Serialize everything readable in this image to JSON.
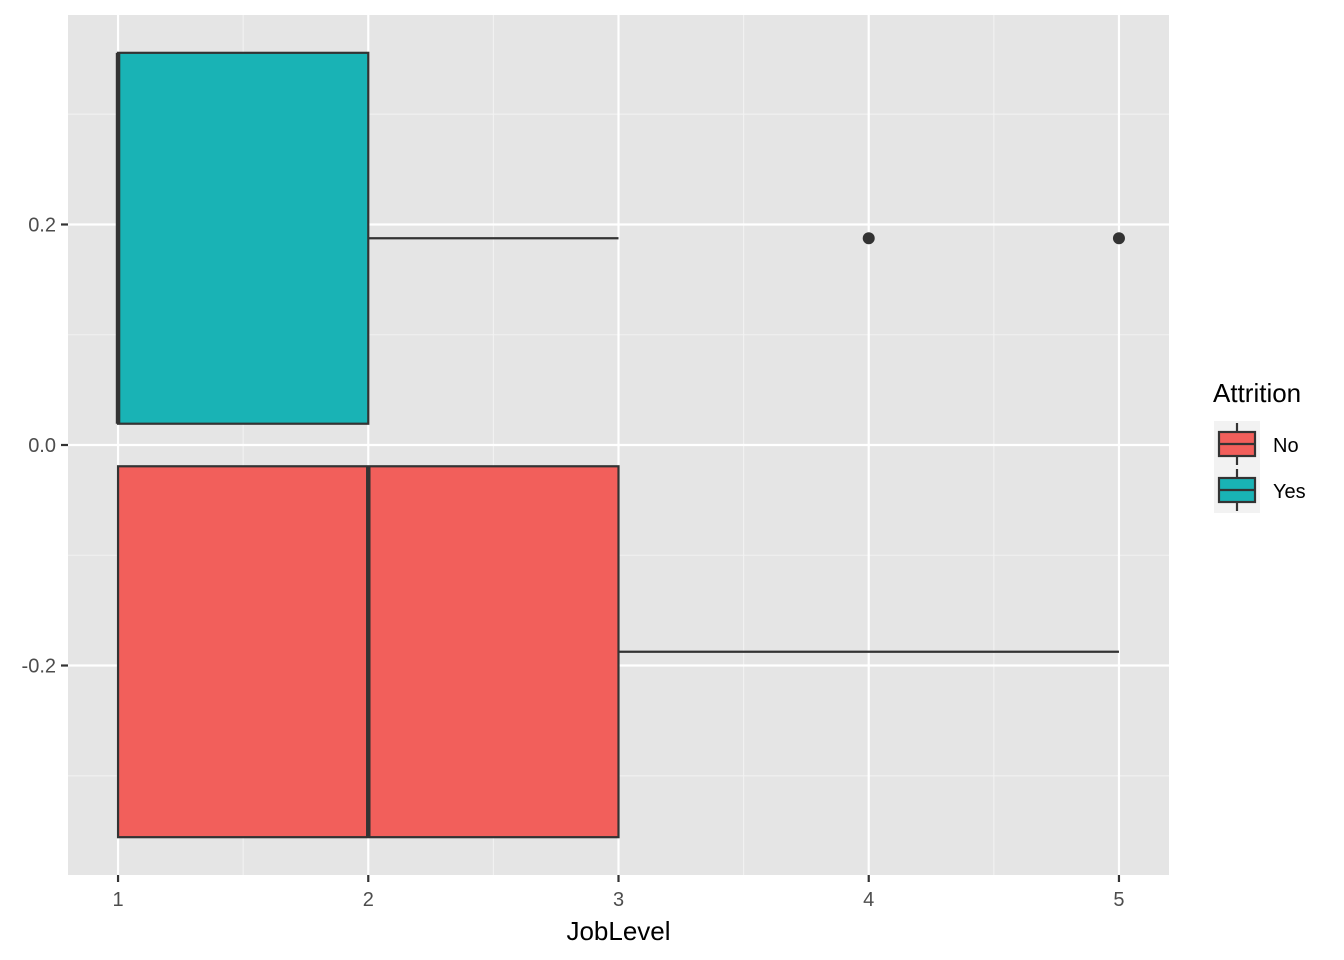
{
  "chart_data": {
    "type": "boxplot",
    "orientation": "horizontal",
    "title": "",
    "xlabel": "JobLevel",
    "ylabel": "",
    "xlim": [
      0.8,
      5.2
    ],
    "ylim": [
      -0.39,
      0.39
    ],
    "x_ticks": [
      1,
      2,
      3,
      4,
      5
    ],
    "x_tick_labels": [
      "1",
      "2",
      "3",
      "4",
      "5"
    ],
    "y_ticks": [
      -0.2,
      0.0,
      0.2
    ],
    "y_tick_labels": [
      "-0.2",
      "0.0",
      "0.2"
    ],
    "grid": true,
    "background": "#e5e5e5",
    "legend": {
      "title": "Attrition",
      "position": "right",
      "entries": [
        {
          "label": "No",
          "color": "#f25f5b"
        },
        {
          "label": "Yes",
          "color": "#19b3b5"
        }
      ]
    },
    "series": [
      {
        "name": "No",
        "color": "#f25f5b",
        "y_center": -0.1875,
        "y_low": -0.3557,
        "y_high": -0.0193,
        "min": 1,
        "q1": 1,
        "median": 2,
        "q3": 3,
        "max": 5,
        "outliers": []
      },
      {
        "name": "Yes",
        "color": "#19b3b5",
        "y_center": 0.1875,
        "y_low": 0.0193,
        "y_high": 0.3557,
        "min": 1,
        "q1": 1,
        "median": 1,
        "q3": 2,
        "max": 3,
        "outliers": [
          4,
          5
        ]
      }
    ]
  }
}
